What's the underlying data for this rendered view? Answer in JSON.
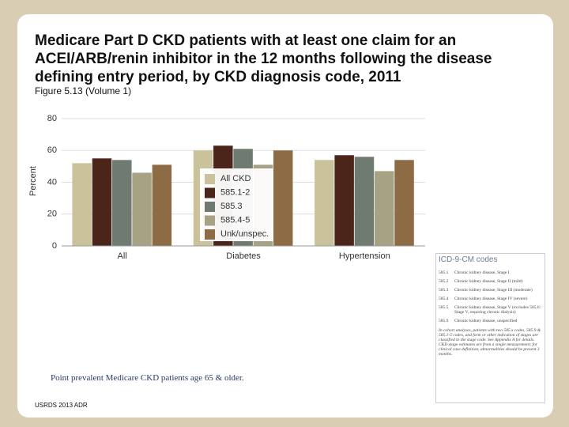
{
  "chart_data": {
    "type": "bar",
    "title": "Medicare Part D CKD patients with at least one claim for an ACEI/ARB/renin inhibitor in the 12 months following the disease defining entry period, by CKD diagnosis code, 2011",
    "subtitle": "Figure 5.13 (Volume 1)",
    "y_label": "Percent",
    "categories": [
      "All",
      "Diabetes",
      "Hypertension"
    ],
    "series": [
      {
        "name": "All CKD",
        "color": "#c9c29b",
        "values": [
          52,
          60,
          54
        ]
      },
      {
        "name": "585.1-2",
        "color": "#4b2519",
        "values": [
          55,
          63,
          57
        ]
      },
      {
        "name": "585.3",
        "color": "#6f7b70",
        "values": [
          54,
          61,
          56
        ]
      },
      {
        "name": "585.4-5",
        "color": "#a8a285",
        "values": [
          46,
          51,
          47
        ]
      },
      {
        "name": "Unk/unspec.",
        "color": "#8c6b45",
        "values": [
          51,
          60,
          54
        ]
      }
    ],
    "ylim": [
      0,
      80
    ],
    "yticks": [
      0,
      20,
      40,
      60,
      80
    ],
    "grid": true,
    "note": "Point prevalent Medicare CKD patients age 65 & older.",
    "source": "USRDS 2013 ADR"
  },
  "icd_codes": {
    "title": "ICD-9-CM codes",
    "entries": [
      {
        "code": "585.1",
        "label": "Chronic kidney disease, Stage I"
      },
      {
        "code": "585.2",
        "label": "Chronic kidney disease, Stage II (mild)"
      },
      {
        "code": "585.3",
        "label": "Chronic kidney disease, Stage III (moderate)"
      },
      {
        "code": "585.4",
        "label": "Chronic kidney disease, Stage IV (severe)"
      },
      {
        "code": "585.5",
        "label": "Chronic kidney disease, Stage V (excludes 585.6: Stage V, requiring chronic dialysis)"
      },
      {
        "code": "585.9",
        "label": "Chronic kidney disease, unspecified"
      }
    ],
    "note": "In cohort analyses, patients with two 585.x codes, 585.9 & 585.1-5 codes, and form or other indication of stages are classified to the stage code. See Appendix A for details. CKD stage estimates are from a single measurement; for clinical case definition, abnormalities should be present 3 months."
  }
}
